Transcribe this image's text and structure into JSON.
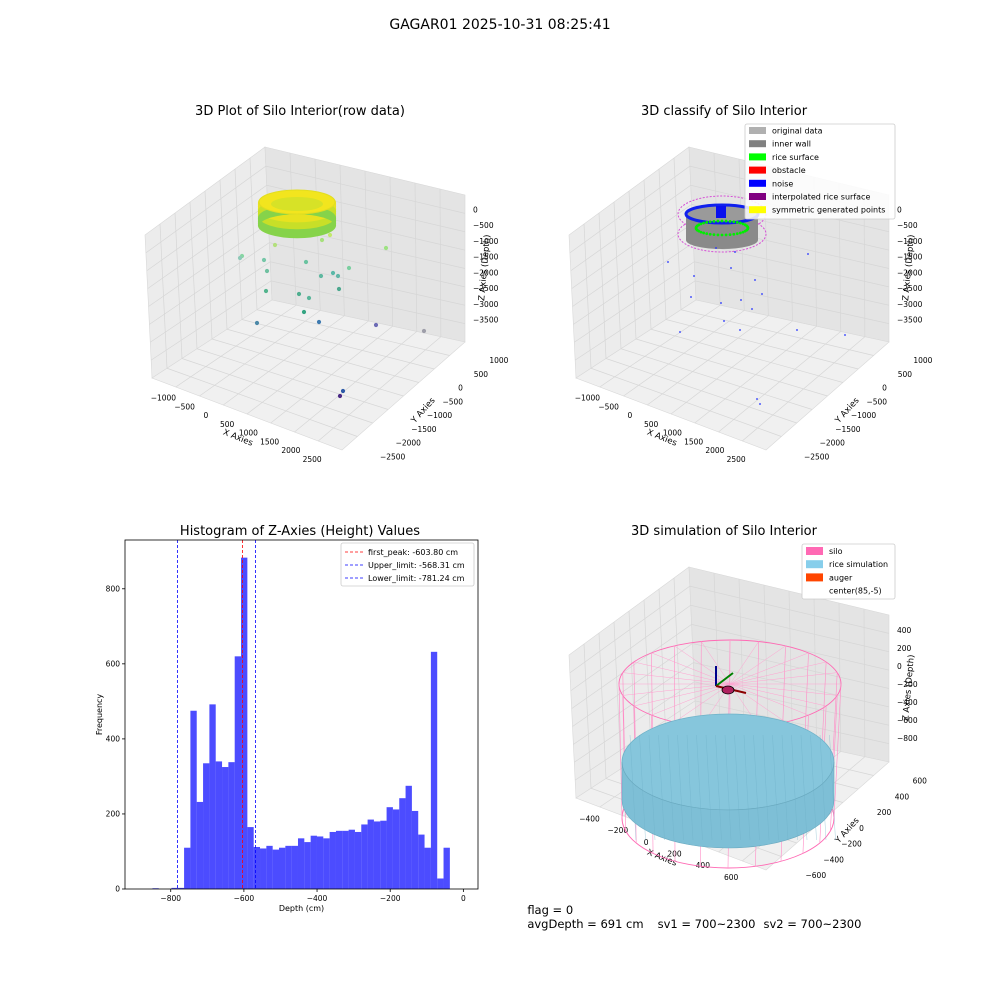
{
  "figure": {
    "title": "GAGAR01 2025-10-31 08:25:41"
  },
  "panels": {
    "raw": {
      "title": "3D Plot of Silo Interior(row data)",
      "xlabel": "X Axies",
      "ylabel": "Y Axies",
      "zlabel": "Z Axies (Depth)",
      "xticks": [
        "−1000",
        "−500",
        "0",
        "500",
        "1000",
        "1500",
        "2000",
        "2500"
      ],
      "yticks": [
        "1000",
        "500",
        "0",
        "−500",
        "−1000",
        "−1500",
        "−2000",
        "−2500"
      ],
      "zticks": [
        "0",
        "−500",
        "−1000",
        "−1500",
        "−2000",
        "−2500",
        "−3000",
        "−3500"
      ]
    },
    "classify": {
      "title": "3D classify of Silo Interior",
      "xlabel": "X Axies",
      "ylabel": "Y Axies",
      "zlabel": "Z Axies (Depth)",
      "xticks": [
        "−1000",
        "−500",
        "0",
        "500",
        "1000",
        "1500",
        "2000",
        "2500"
      ],
      "yticks": [
        "1000",
        "500",
        "0",
        "−500",
        "−1000",
        "−1500",
        "−2000",
        "−2500"
      ],
      "zticks": [
        "0",
        "−500",
        "−1000",
        "−1500",
        "−2000",
        "−2500",
        "−3000",
        "−3500"
      ],
      "legend": [
        {
          "label": "original data",
          "color": "#b0b0b0"
        },
        {
          "label": "inner wall",
          "color": "#808080"
        },
        {
          "label": "rice surface",
          "color": "#00ff00"
        },
        {
          "label": "obstacle",
          "color": "#ff0000"
        },
        {
          "label": "noise",
          "color": "#0000ff"
        },
        {
          "label": "interpolated rice surface",
          "color": "#800080"
        },
        {
          "label": "symmetric generated points",
          "color": "#ffff00"
        }
      ]
    },
    "sim": {
      "title": "3D simulation of Silo Interior",
      "xlabel": "X Axies",
      "ylabel": "Y Axies",
      "zlabel": "Z Axies (Depth)",
      "xticks": [
        "−400",
        "−200",
        "0",
        "200",
        "400",
        "600"
      ],
      "yticks": [
        "600",
        "400",
        "200",
        "0",
        "−200",
        "−400",
        "−600"
      ],
      "zticks": [
        "400",
        "200",
        "0",
        "−200",
        "−400",
        "−600",
        "−800"
      ],
      "legend": [
        {
          "label": "silo",
          "color": "#ff69b4"
        },
        {
          "label": "rice simulation",
          "color": "#87ceeb"
        },
        {
          "label": "auger",
          "color": "#ff4500"
        },
        {
          "label": "center(85,-5)",
          "color": ""
        }
      ]
    }
  },
  "status": {
    "flag": "flag = 0",
    "avg_depth": "avgDepth = 691 cm",
    "sv1": "sv1 = 700~2300",
    "sv2": "sv2 = 700~2300"
  },
  "chart_data": {
    "type": "bar",
    "title": "Histogram of Z-Axies (Height) Values",
    "xlabel": "Depth (cm)",
    "ylabel": "Frequency",
    "xlim": [
      -925,
      40
    ],
    "ylim": [
      0,
      930
    ],
    "xticks": [
      -800,
      -600,
      -400,
      -200,
      0
    ],
    "yticks": [
      0,
      200,
      400,
      600,
      800
    ],
    "bar_color": "#0000ff",
    "bin_width": 17.3,
    "bin_starts": [
      -850,
      -832.7,
      -815.4,
      -798.1,
      -780.8,
      -763.5,
      -746.2,
      -728.9,
      -711.6,
      -694.3,
      -677,
      -659.7,
      -642.4,
      -625.1,
      -607.8,
      -590.5,
      -573.2,
      -555.9,
      -538.6,
      -521.3,
      -504,
      -486.7,
      -469.4,
      -452.1,
      -434.8,
      -417.5,
      -400.2,
      -382.9,
      -365.6,
      -348.3,
      -331,
      -313.7,
      -296.4,
      -279.1,
      -261.8,
      -244.5,
      -227.2,
      -209.9,
      -192.6,
      -175.3,
      -158,
      -140.7,
      -123.4,
      -106.1,
      -88.8,
      -71.5,
      -54.2,
      -36.9,
      -19.6,
      -2.3
    ],
    "counts": [
      2,
      0,
      0,
      3,
      3,
      110,
      475,
      232,
      335,
      492,
      340,
      325,
      338,
      620,
      883,
      165,
      112,
      108,
      115,
      105,
      110,
      115,
      115,
      135,
      125,
      142,
      140,
      135,
      152,
      155,
      155,
      158,
      152,
      172,
      185,
      180,
      182,
      218,
      212,
      242,
      275,
      208,
      145,
      110,
      632,
      28,
      110,
      0,
      0,
      0
    ],
    "lines": [
      {
        "label": "first_peak: -603.80 cm",
        "x": -603.8,
        "color": "#ff0000"
      },
      {
        "label": "Upper_limit: -568.31 cm",
        "x": -568.31,
        "color": "#0000ff"
      },
      {
        "label": "Lower_limit: -781.24 cm",
        "x": -781.24,
        "color": "#0000ff"
      }
    ]
  }
}
